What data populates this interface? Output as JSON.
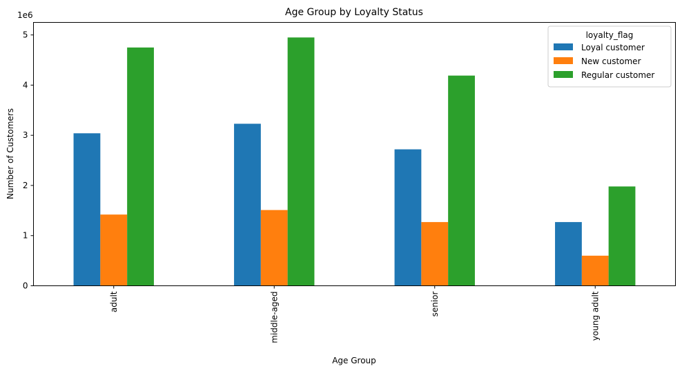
{
  "chart_data": {
    "type": "bar",
    "title": "Age Group by Loyalty Status",
    "xlabel": "Age Group",
    "ylabel": "Number of Customers",
    "y_offset_label": "1e6",
    "categories": [
      "adult",
      "middle-aged",
      "senior",
      "young adult"
    ],
    "series": [
      {
        "name": "Loyal customer",
        "color": "#1f77b4",
        "values": [
          3040000,
          3230000,
          2720000,
          1270000
        ]
      },
      {
        "name": "New customer",
        "color": "#ff7f0e",
        "values": [
          1420000,
          1510000,
          1270000,
          600000
        ]
      },
      {
        "name": "Regular customer",
        "color": "#2ca02c",
        "values": [
          4750000,
          4950000,
          4190000,
          1980000
        ]
      }
    ],
    "ylim": [
      0,
      5250000
    ],
    "yticks": [
      0,
      1000000,
      2000000,
      3000000,
      4000000,
      5000000
    ],
    "ytick_labels": [
      "0",
      "1",
      "2",
      "3",
      "4",
      "5"
    ],
    "legend": {
      "title": "loyalty_flag",
      "placement": "top-right"
    },
    "grid": false
  }
}
